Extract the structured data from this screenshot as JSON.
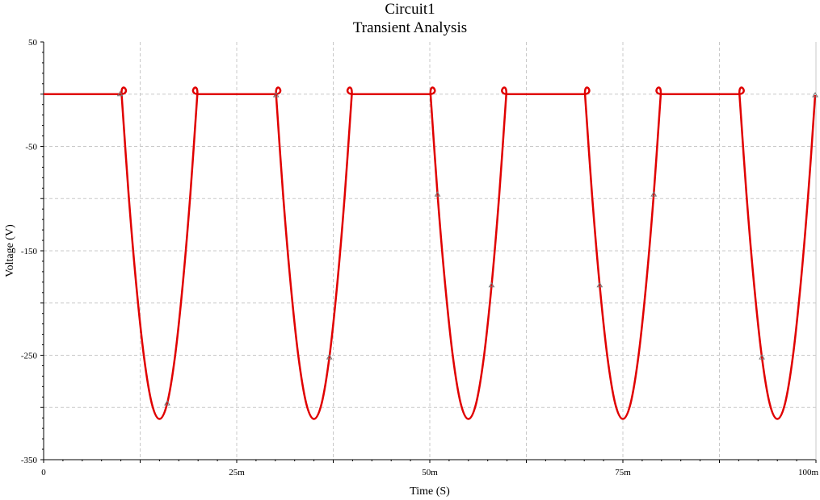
{
  "chart_data": {
    "type": "line",
    "title": "Circuit1",
    "subtitle": "Transient Analysis",
    "xlabel": "Time (S)",
    "ylabel": "Voltage (V)",
    "xlim": [
      0,
      0.1
    ],
    "ylim": [
      -350,
      50
    ],
    "grid": true,
    "x_ticks": [
      {
        "value": 0,
        "label": "0"
      },
      {
        "value": 0.025,
        "label": "25m"
      },
      {
        "value": 0.05,
        "label": "50m"
      },
      {
        "value": 0.075,
        "label": "75m"
      },
      {
        "value": 0.1,
        "label": "100m"
      }
    ],
    "y_ticks": [
      {
        "value": 50,
        "label": "50"
      },
      {
        "value": -50,
        "label": "-50"
      },
      {
        "value": -150,
        "label": "-150"
      },
      {
        "value": -250,
        "label": "-250"
      },
      {
        "value": -350,
        "label": "-350"
      }
    ],
    "series": [
      {
        "color": "#e00000",
        "x": [
          0,
          0.0099,
          0.0101,
          0.011,
          0.012,
          0.013,
          0.014,
          0.015,
          0.016,
          0.017,
          0.018,
          0.019,
          0.0199,
          0.0201,
          0.0299,
          0.0301,
          0.031,
          0.032,
          0.033,
          0.034,
          0.035,
          0.036,
          0.037,
          0.038,
          0.039,
          0.0399,
          0.0401,
          0.0499,
          0.0501,
          0.051,
          0.052,
          0.053,
          0.054,
          0.055,
          0.056,
          0.057,
          0.058,
          0.059,
          0.0599,
          0.0601,
          0.0699,
          0.0701,
          0.071,
          0.072,
          0.073,
          0.074,
          0.075,
          0.076,
          0.077,
          0.078,
          0.079,
          0.0799,
          0.0801,
          0.0899,
          0.0901,
          0.091,
          0.092,
          0.093,
          0.094,
          0.095,
          0.096,
          0.097,
          0.098,
          0.099,
          0.0999
        ],
        "y": [
          0,
          0,
          -1,
          -96,
          -183,
          -252,
          -296,
          -311,
          -296,
          -252,
          -183,
          -96,
          -1,
          0,
          0,
          -1,
          -96,
          -183,
          -252,
          -296,
          -311,
          -296,
          -252,
          -183,
          -96,
          -1,
          0,
          0,
          -1,
          -96,
          -183,
          -252,
          -296,
          -311,
          -296,
          -252,
          -183,
          -96,
          -1,
          0,
          0,
          -1,
          -96,
          -183,
          -252,
          -296,
          -311,
          -296,
          -252,
          -183,
          -96,
          -1,
          0,
          0,
          -1,
          -96,
          -183,
          -252,
          -296,
          -311,
          -296,
          -252,
          -183,
          -96,
          -1
        ]
      }
    ]
  }
}
